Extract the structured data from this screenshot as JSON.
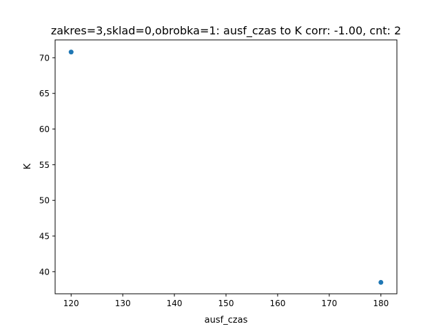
{
  "chart_data": {
    "type": "scatter",
    "title": "zakres=3,sklad=0,obrobka=1: ausf_czas to K corr: -1.00, cnt: 2",
    "xlabel": "ausf_czas",
    "ylabel": "K",
    "xlim": [
      116.9,
      183.1
    ],
    "ylim": [
      36.9,
      72.5
    ],
    "xticks": [
      120,
      130,
      140,
      150,
      160,
      170,
      180
    ],
    "yticks": [
      40,
      45,
      50,
      55,
      60,
      65,
      70
    ],
    "grid": false,
    "series": [
      {
        "color": "#1f77b4",
        "points": [
          {
            "x": 120,
            "y": 70.8
          },
          {
            "x": 180,
            "y": 38.5
          }
        ]
      }
    ]
  }
}
